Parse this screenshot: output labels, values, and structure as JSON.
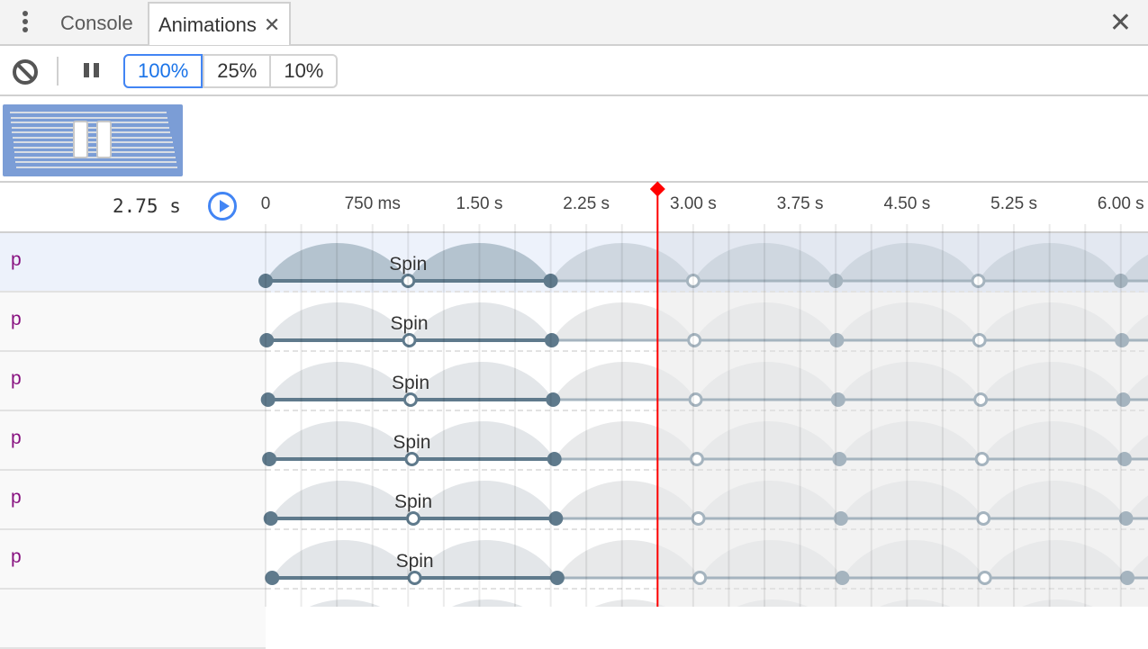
{
  "tabs": {
    "menu_icon": "kebab-icon",
    "items": [
      {
        "label": "Console",
        "active": false
      },
      {
        "label": "Animations",
        "active": true,
        "closable": true
      }
    ],
    "close_icon": "close-icon"
  },
  "toolbar": {
    "clear_icon": "block-icon",
    "pause_icon": "pause-icon",
    "speeds": [
      {
        "label": "100%",
        "selected": true
      },
      {
        "label": "25%",
        "selected": false
      },
      {
        "label": "10%",
        "selected": false
      }
    ]
  },
  "overview": {
    "thumbnail": "animation-group-preview",
    "color": "#7b9dd6"
  },
  "timeline": {
    "current_time": "2.75 s",
    "current_time_ms": 2750,
    "play_icon": "play-icon",
    "ticks": [
      {
        "label": "0",
        "ms": 0
      },
      {
        "label": "750 ms",
        "ms": 750
      },
      {
        "label": "1.50 s",
        "ms": 1500
      },
      {
        "label": "2.25 s",
        "ms": 2250
      },
      {
        "label": "3.00 s",
        "ms": 3000
      },
      {
        "label": "3.75 s",
        "ms": 3750
      },
      {
        "label": "4.50 s",
        "ms": 4500
      },
      {
        "label": "5.25 s",
        "ms": 5250
      },
      {
        "label": "6.00 s",
        "ms": 6000
      }
    ],
    "playhead_color": "#ff0000",
    "animation": {
      "name": "Spin",
      "iteration_ms": 1000,
      "active_iterations": 2
    }
  },
  "rows": [
    {
      "node": "p",
      "name": "Spin",
      "delay_ms": 0,
      "selected": true
    },
    {
      "node": "p",
      "name": "Spin",
      "delay_ms": 8,
      "selected": false
    },
    {
      "node": "p",
      "name": "Spin",
      "delay_ms": 17,
      "selected": false
    },
    {
      "node": "p",
      "name": "Spin",
      "delay_ms": 26,
      "selected": false
    },
    {
      "node": "p",
      "name": "Spin",
      "delay_ms": 36,
      "selected": false
    },
    {
      "node": "p",
      "name": "Spin",
      "delay_ms": 46,
      "selected": false
    },
    {
      "node": "",
      "name": "",
      "delay_ms": 56,
      "selected": false
    }
  ],
  "colors": {
    "node": "#881280",
    "accent": "#4285f4",
    "keyframe": "#5f7a8c",
    "keyframe_inactive": "#a5b4bf"
  }
}
